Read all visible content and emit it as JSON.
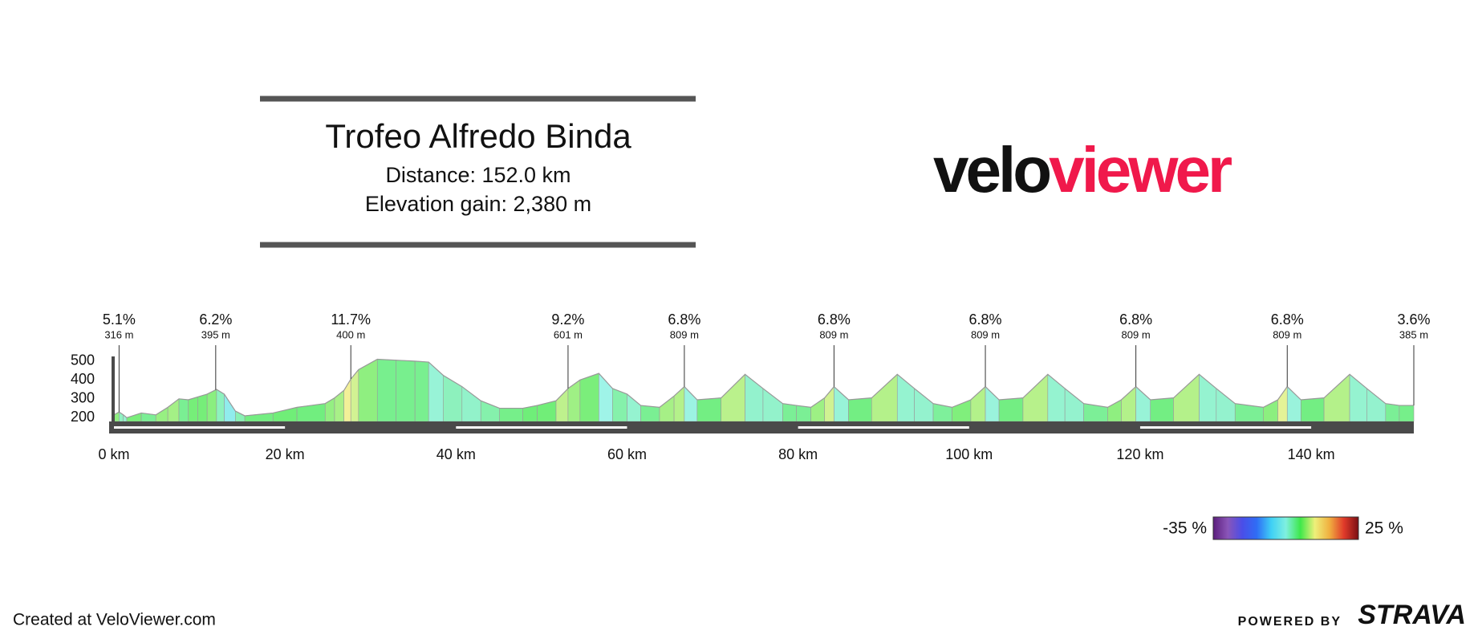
{
  "chart_data": {
    "type": "area",
    "title": "Trofeo Alfredo Binda",
    "subtitle": [
      "Distance: 152.0 km",
      "Elevation gain: 2,380 m"
    ],
    "x": [
      0,
      0.6,
      1.1,
      1.5,
      3.2,
      4.9,
      6.3,
      7.6,
      8.7,
      9.8,
      10.9,
      12.0,
      12.9,
      14.2,
      15.3,
      18.6,
      21.4,
      24.7,
      25.8,
      26.9,
      27.7,
      28.6,
      30.8,
      33.0,
      35.2,
      36.8,
      38.5,
      40.7,
      42.9,
      45.1,
      47.8,
      49.5,
      51.7,
      53.1,
      54.5,
      56.7,
      58.3,
      60.0,
      61.6,
      63.8,
      65.5,
      66.7,
      68.2,
      71.0,
      73.8,
      75.9,
      78.2,
      79.8,
      81.5,
      83.1,
      84.2,
      85.9,
      88.6,
      91.6,
      93.6,
      95.8,
      98.0,
      100.2,
      101.9,
      103.5,
      106.3,
      109.2,
      111.2,
      113.4,
      116.2,
      117.8,
      119.5,
      121.2,
      123.9,
      126.9,
      128.9,
      131.1,
      134.4,
      136.1,
      137.2,
      138.8,
      141.5,
      144.5,
      146.5,
      148.7,
      150.3,
      152.0
    ],
    "values": [
      215,
      230,
      215,
      200,
      225,
      215,
      255,
      300,
      295,
      310,
      325,
      350,
      325,
      235,
      210,
      225,
      255,
      275,
      305,
      345,
      405,
      455,
      510,
      505,
      500,
      495,
      425,
      365,
      290,
      250,
      250,
      265,
      290,
      355,
      400,
      435,
      355,
      325,
      265,
      255,
      315,
      365,
      295,
      305,
      430,
      355,
      275,
      265,
      255,
      305,
      365,
      295,
      305,
      430,
      355,
      275,
      255,
      295,
      365,
      295,
      305,
      430,
      355,
      275,
      255,
      295,
      365,
      295,
      305,
      430,
      355,
      275,
      255,
      295,
      365,
      295,
      305,
      430,
      355,
      275,
      265,
      265
    ],
    "xlim": [
      0,
      152
    ],
    "ylim": [
      180,
      525
    ],
    "xticks": [
      {
        "value": 0,
        "label": "0 km"
      },
      {
        "value": 20,
        "label": "20 km"
      },
      {
        "value": 40,
        "label": "40 km"
      },
      {
        "value": 60,
        "label": "60 km"
      },
      {
        "value": 80,
        "label": "80 km"
      },
      {
        "value": 100,
        "label": "100 km"
      },
      {
        "value": 120,
        "label": "120 km"
      },
      {
        "value": 140,
        "label": "140 km"
      }
    ],
    "yticks": [
      200,
      300,
      400,
      500
    ],
    "grid": false,
    "annotations": [
      {
        "x": 0.6,
        "grade": "5.1%",
        "elevation": "316 m"
      },
      {
        "x": 11.9,
        "grade": "6.2%",
        "elevation": "395 m"
      },
      {
        "x": 27.7,
        "grade": "11.7%",
        "elevation": "400 m"
      },
      {
        "x": 53.1,
        "grade": "9.2%",
        "elevation": "601 m"
      },
      {
        "x": 66.7,
        "grade": "6.8%",
        "elevation": "809 m"
      },
      {
        "x": 84.2,
        "grade": "6.8%",
        "elevation": "809 m"
      },
      {
        "x": 101.9,
        "grade": "6.8%",
        "elevation": "809 m"
      },
      {
        "x": 119.5,
        "grade": "6.8%",
        "elevation": "809 m"
      },
      {
        "x": 137.2,
        "grade": "6.8%",
        "elevation": "809 m"
      },
      {
        "x": 152.0,
        "grade": "3.6%",
        "elevation": "385 m"
      }
    ],
    "colorbar": {
      "ticks": [
        {
          "value": -35,
          "label": "-35 %"
        },
        {
          "value": 25,
          "label": "25 %"
        }
      ],
      "colors": [
        "#5b1e7c",
        "#8a55b8",
        "#4a4ee8",
        "#2f6df5",
        "#3fd0f5",
        "#7ff0e0",
        "#3ee84a",
        "#eef07a",
        "#f0b040",
        "#e03a2a",
        "#7a0f14"
      ]
    }
  },
  "logo": {
    "parts": [
      "velo",
      "viewer"
    ],
    "colors": [
      "#111111",
      "#f0194b"
    ]
  },
  "footer": {
    "credit": "Created at VeloViewer.com",
    "powered": "POWERED BY",
    "brand": "STRAVA",
    "brand_color": "#fc4c02"
  }
}
